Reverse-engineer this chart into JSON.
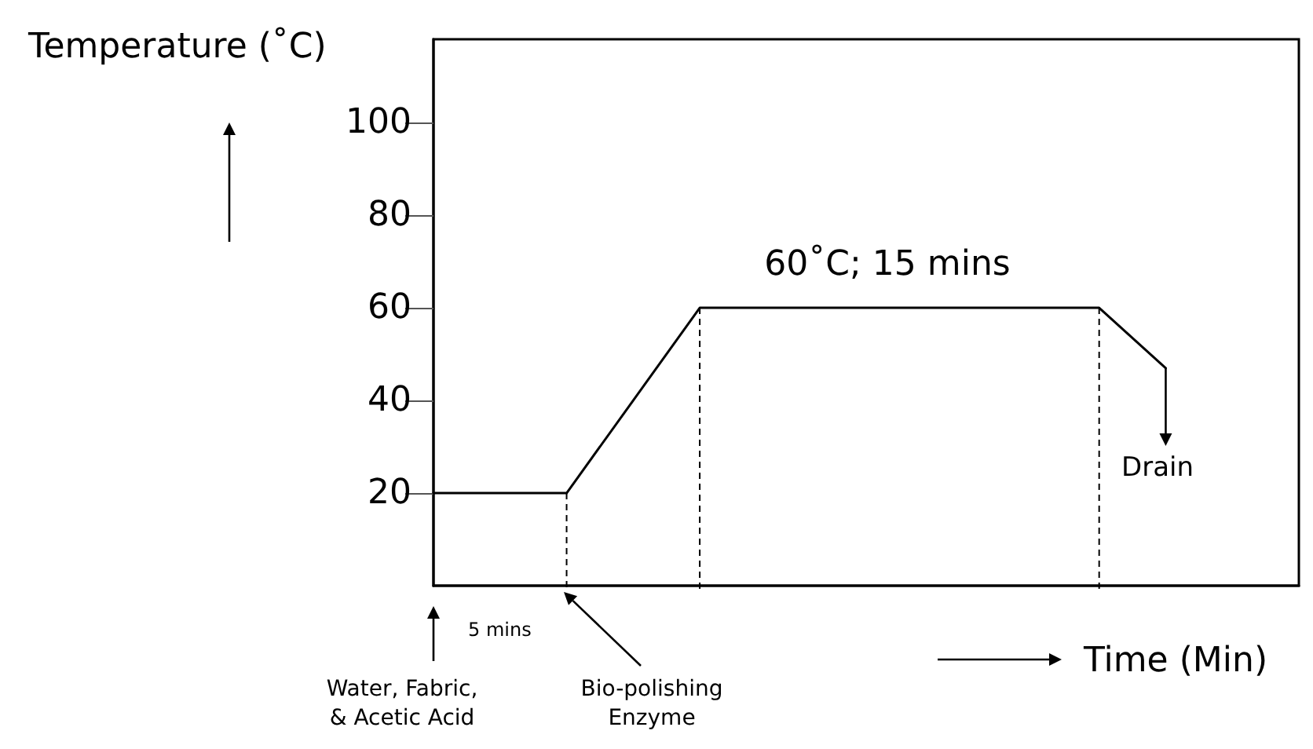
{
  "chart_data": {
    "type": "line",
    "xlabel": "Time (Min)",
    "ylabel": "Temperature (˚C)",
    "categories": [
      null,
      null,
      null,
      null,
      null,
      null,
      null,
      null,
      null,
      null,
      null,
      null,
      null,
      null
    ],
    "series": [
      {
        "color": "#000000",
        "values": [
          20,
          20,
          20,
          40,
          60,
          60,
          60,
          60,
          60,
          60,
          60,
          47,
          null,
          null
        ]
      }
    ],
    "ylim": [
      0,
      118
    ],
    "yticks": [
      20,
      40,
      60,
      80,
      100
    ],
    "tick_labels": "y",
    "marker": "none",
    "line_style": "solid",
    "annotations": [
      "60˚C; 15 mins",
      "Drain",
      "5 mins",
      "Water, Fabric,\n& Acetic Acid",
      "Bio-polishing\nEnzyme"
    ]
  }
}
